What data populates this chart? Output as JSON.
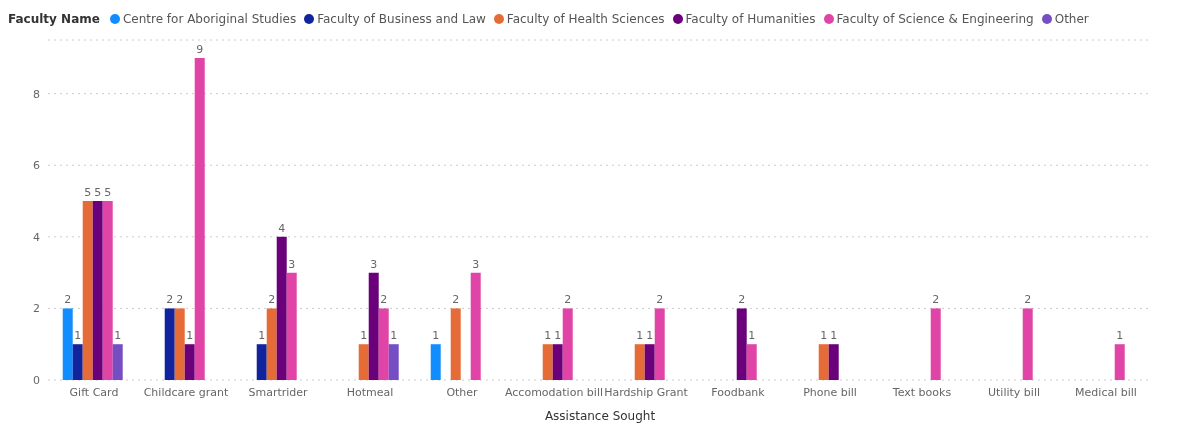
{
  "chart_data": {
    "type": "bar",
    "legend_title": "Faculty Name",
    "xlabel": "Assistance Sought",
    "categories": [
      "Gift Card",
      "Childcare grant",
      "Smartrider",
      "Hotmeal",
      "Other",
      "Accomodation bill",
      "Hardship Grant",
      "Foodbank",
      "Phone bill",
      "Text books",
      "Utility bill",
      "Medical bill"
    ],
    "series": [
      {
        "name": "Centre for Aboriginal Studies",
        "color": "#118dff",
        "values": [
          2,
          null,
          null,
          null,
          1,
          null,
          null,
          null,
          null,
          null,
          null,
          null
        ]
      },
      {
        "name": "Faculty of Business and Law",
        "color": "#12239e",
        "values": [
          1,
          2,
          1,
          null,
          null,
          null,
          null,
          null,
          null,
          null,
          null,
          null
        ]
      },
      {
        "name": "Faculty of Health Sciences",
        "color": "#e66c37",
        "values": [
          5,
          2,
          2,
          1,
          2,
          1,
          1,
          null,
          1,
          null,
          null,
          null
        ]
      },
      {
        "name": "Faculty of Humanities",
        "color": "#6b007b",
        "values": [
          5,
          1,
          4,
          3,
          null,
          1,
          1,
          2,
          1,
          null,
          null,
          null
        ]
      },
      {
        "name": "Faculty of Science & Engineering",
        "color": "#e044a7",
        "values": [
          5,
          9,
          3,
          2,
          3,
          2,
          2,
          1,
          null,
          2,
          2,
          1
        ]
      },
      {
        "name": "Other",
        "color": "#744ec2",
        "values": [
          1,
          null,
          null,
          1,
          null,
          null,
          null,
          null,
          null,
          null,
          null,
          null
        ]
      }
    ],
    "ylim": [
      0,
      9.5
    ],
    "yticks": [
      0,
      2,
      4,
      6,
      8
    ],
    "grid": "y",
    "legend": "top left",
    "data_labels": true
  }
}
